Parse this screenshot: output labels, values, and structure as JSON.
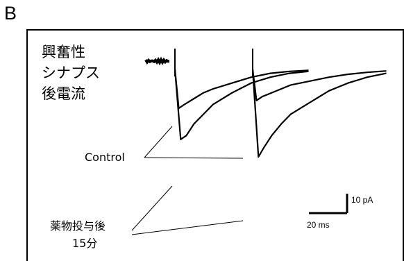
{
  "panel_label": "B",
  "title_lines": [
    "興奮性",
    "シナプス",
    "後電流"
  ],
  "chart_data": {
    "type": "line",
    "title": "",
    "series": [
      {
        "name": "Control",
        "sweeps": [
          {
            "x_ms": [
              0,
              2,
              5,
              10,
              15,
              20,
              30,
              40,
              50,
              60,
              70
            ],
            "y_pA": [
              0,
              -20,
              -18,
              -15,
              -12,
              -10,
              -7,
              -4,
              -2,
              -1,
              -0.5
            ]
          },
          {
            "x_ms": [
              0,
              2,
              5,
              10,
              15,
              20,
              30,
              40,
              50,
              60,
              70
            ],
            "y_pA": [
              0,
              -16,
              -14,
              -12,
              -10,
              -8,
              -6,
              -4,
              -2.5,
              -1.5,
              -0.8
            ]
          }
        ]
      },
      {
        "name": "薬物投与後15分",
        "sweeps": [
          {
            "x_ms": [
              0,
              3,
              6,
              10,
              15,
              20,
              30,
              40,
              50,
              60,
              70
            ],
            "y_pA": [
              0,
              -36,
              -34,
              -28,
              -23,
              -18,
              -12,
              -7,
              -4,
              -2,
              -1
            ]
          },
          {
            "x_ms": [
              0,
              3,
              6,
              10,
              15,
              20,
              30,
              40,
              50,
              60,
              70
            ],
            "y_pA": [
              0,
              -45,
              -40,
              -34,
              -28,
              -23,
              -17,
              -11,
              -7,
              -4,
              -2
            ]
          }
        ]
      }
    ],
    "annotations": {
      "control_label": "Control",
      "drug_label_line1": "薬物投与後",
      "drug_label_line2": "15分"
    },
    "scale_bar": {
      "time_label": "20 ms",
      "current_label": "10 pA",
      "time_ms": 20,
      "current_pA": 10
    }
  }
}
